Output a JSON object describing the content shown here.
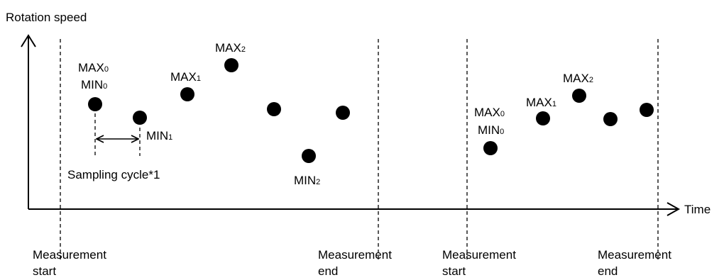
{
  "axes": {
    "y_label": "Rotation speed",
    "x_label": "Time"
  },
  "markers": {
    "measurement_start": [
      "Measurement",
      "start"
    ],
    "measurement_end": [
      "Measurement",
      "end"
    ]
  },
  "sampling": {
    "label": "Sampling cycle*1"
  },
  "window1": {
    "labels": {
      "max0": {
        "main": "MAX",
        "sub": "0"
      },
      "min0": {
        "main": "MIN",
        "sub": "0"
      },
      "max1": {
        "main": "MAX",
        "sub": "1"
      },
      "min1": {
        "main": "MIN",
        "sub": "1"
      },
      "max2": {
        "main": "MAX",
        "sub": "2"
      },
      "min2": {
        "main": "MIN",
        "sub": "2"
      }
    }
  },
  "window2": {
    "labels": {
      "max0": {
        "main": "MAX",
        "sub": "0"
      },
      "min0": {
        "main": "MIN",
        "sub": "0"
      },
      "max1": {
        "main": "MAX",
        "sub": "1"
      },
      "max2": {
        "main": "MAX",
        "sub": "2"
      }
    }
  }
}
